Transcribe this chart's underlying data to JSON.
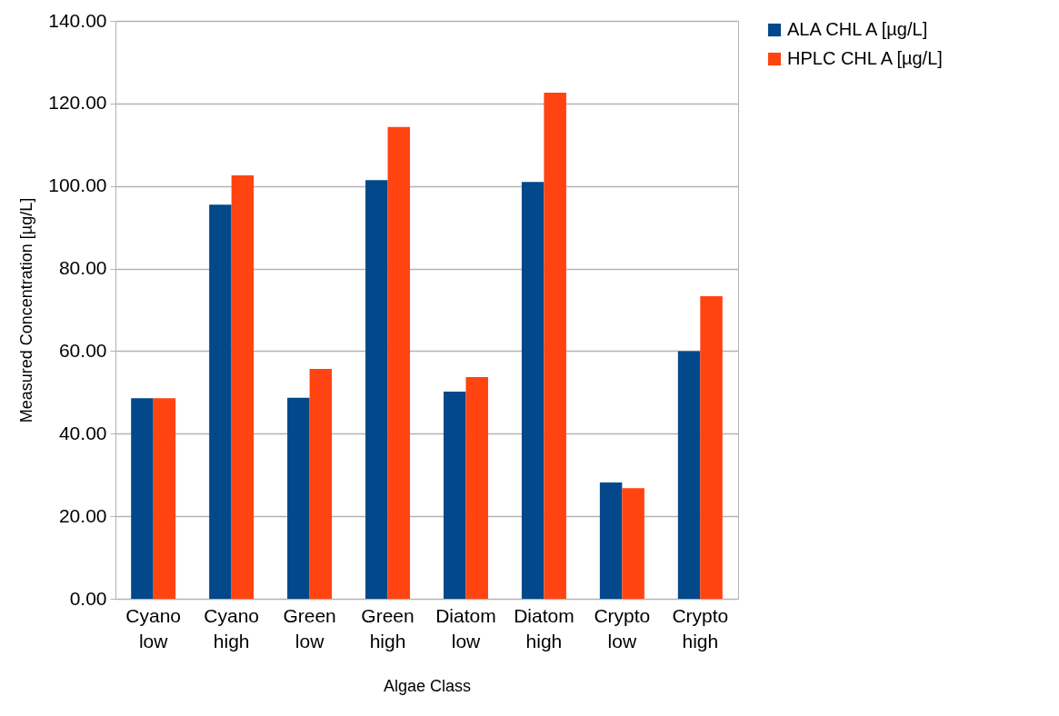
{
  "chart_data": {
    "type": "bar",
    "xlabel": "Algae Class",
    "ylabel": "Measured Concentration [µg/L]",
    "categories": [
      "Cyano low",
      "Cyano high",
      "Green low",
      "Green high",
      "Diatom low",
      "Diatom high",
      "Crypto low",
      "Crypto high"
    ],
    "series": [
      {
        "name": "ALA CHL A [µg/L]",
        "color": "#02488a",
        "values": [
          48.6,
          95.5,
          48.7,
          101.4,
          50.2,
          101.0,
          28.2,
          60.0
        ]
      },
      {
        "name": "HPLC CHL A [µg/L]",
        "color": "#ff4411",
        "values": [
          48.6,
          102.6,
          55.7,
          114.3,
          53.7,
          122.6,
          26.8,
          73.3
        ]
      }
    ],
    "ylim": [
      0,
      140
    ],
    "yticks": [
      {
        "value": 0,
        "label": "0.00"
      },
      {
        "value": 20,
        "label": "20.00"
      },
      {
        "value": 40,
        "label": "40.00"
      },
      {
        "value": 60,
        "label": "60.00"
      },
      {
        "value": 80,
        "label": "80.00"
      },
      {
        "value": 100,
        "label": "100.00"
      },
      {
        "value": 120,
        "label": "120.00"
      },
      {
        "value": 140,
        "label": "140.00"
      }
    ],
    "grid": "y",
    "legend": "right"
  }
}
